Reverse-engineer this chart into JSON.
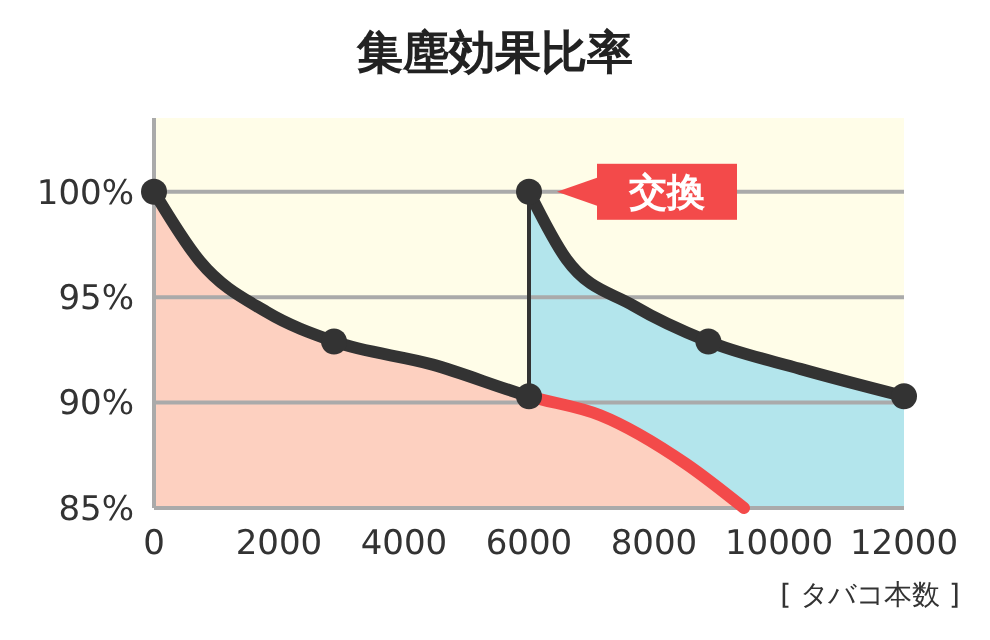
{
  "chart_data": {
    "type": "area",
    "title": "集塵効果比率",
    "xlabel": "[ タバコ本数 ]",
    "xlim": [
      0,
      12000
    ],
    "xticks": [
      0,
      2000,
      4000,
      6000,
      8000,
      10000,
      12000
    ],
    "ylim": [
      85,
      103.5
    ],
    "yticks": [
      {
        "value": 85,
        "label": "85%"
      },
      {
        "value": 90,
        "label": "90%"
      },
      {
        "value": 95,
        "label": "95%"
      },
      {
        "value": 100,
        "label": "100%"
      }
    ],
    "grid": "y",
    "series": [
      {
        "color": "#b3e5ec",
        "colors": [
          "#333333",
          "#333333",
          "#333333",
          "#333333",
          "#333333",
          "#333333"
        ],
        "x": [
          6000,
          6600,
          7670,
          8870,
          10340,
          12000
        ],
        "values": [
          100,
          96.8,
          94.6,
          92.9,
          91.6,
          90.3
        ]
      },
      {
        "color": "#fdd0c0",
        "colors": [
          "#333333",
          "#333333",
          "#333333",
          "#333333",
          "#333333",
          "#f34a4a",
          "#f34a4a",
          "#f34a4a",
          "#f34a4a"
        ],
        "x": [
          0,
          736,
          1800,
          2880,
          4460,
          6000,
          7140,
          8510,
          9440
        ],
        "values": [
          100,
          96.7,
          94.3,
          92.9,
          91.8,
          90.3,
          89.4,
          87.1,
          85
        ]
      },
      {
        "type": "line",
        "color": "#333333",
        "x": [
          6000,
          6000
        ],
        "values": [
          90.3,
          100
        ]
      },
      {
        "type": "scatter",
        "color": "#333333",
        "marker": "circle",
        "x": [
          0,
          2880,
          6000,
          6000,
          8870,
          12000
        ],
        "values": [
          100,
          92.9,
          90.3,
          100,
          92.9,
          90.3
        ]
      }
    ],
    "annotations": [
      {
        "text": "交換",
        "x": 6000,
        "y": 100
      }
    ]
  }
}
